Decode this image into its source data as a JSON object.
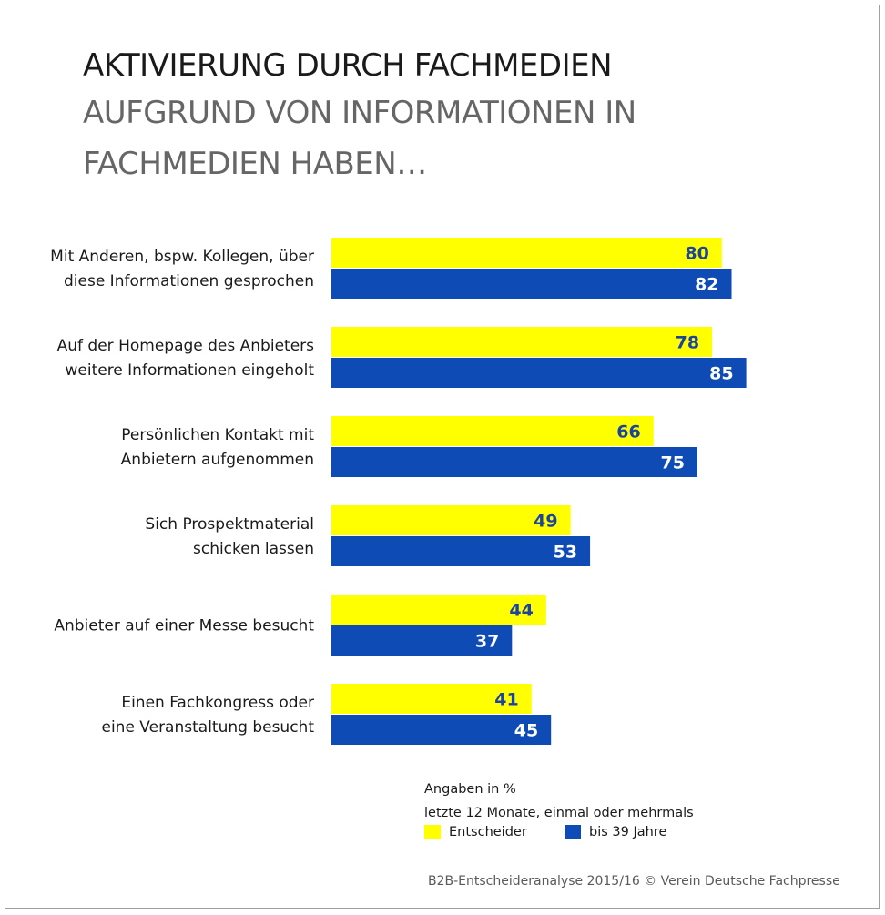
{
  "title": "AKTIVIERUNG DURCH FACHMEDIEN",
  "subtitle_lines": [
    "AUFGRUND VON INFORMATIONEN IN",
    "FACHMEDIEN HABEN…"
  ],
  "notes": {
    "unit": "Angaben in %",
    "period": "letzte 12 Monate, einmal oder mehrmals"
  },
  "source": "B2B-Entscheideranalyse 2015/16 © Verein Deutsche Fachpresse",
  "colors": {
    "series_1": "#ffff00",
    "series_2": "#0f4bb5",
    "label_on_series_1": "#1a44a0",
    "label_on_series_2": "#ffffff"
  },
  "chart_data": {
    "type": "bar",
    "orientation": "horizontal",
    "title": "AKTIVIERUNG DURCH FACHMEDIEN",
    "subtitle": "AUFGRUND VON INFORMATIONEN IN FACHMEDIEN HABEN…",
    "categories": [
      [
        "Mit Anderen, bspw. Kollegen, über",
        "diese Informationen gesprochen"
      ],
      [
        "Auf der Homepage des Anbieters",
        "weitere Informationen eingeholt"
      ],
      [
        "Persönlichen Kontakt mit",
        "Anbietern aufgenommen"
      ],
      [
        "Sich Prospektmaterial",
        "schicken lassen"
      ],
      [
        "Anbieter auf einer Messe besucht"
      ],
      [
        "Einen Fachkongress oder",
        "eine Veranstaltung besucht"
      ]
    ],
    "series": [
      {
        "name": "Entscheider",
        "values": [
          80,
          78,
          66,
          49,
          44,
          41
        ]
      },
      {
        "name": "bis 39 Jahre",
        "values": [
          82,
          85,
          75,
          53,
          37,
          45
        ]
      }
    ],
    "xlabel": "",
    "ylabel": "",
    "xlim": [
      0,
      100
    ],
    "unit": "%",
    "grid": false,
    "legend_position": "bottom-right"
  }
}
